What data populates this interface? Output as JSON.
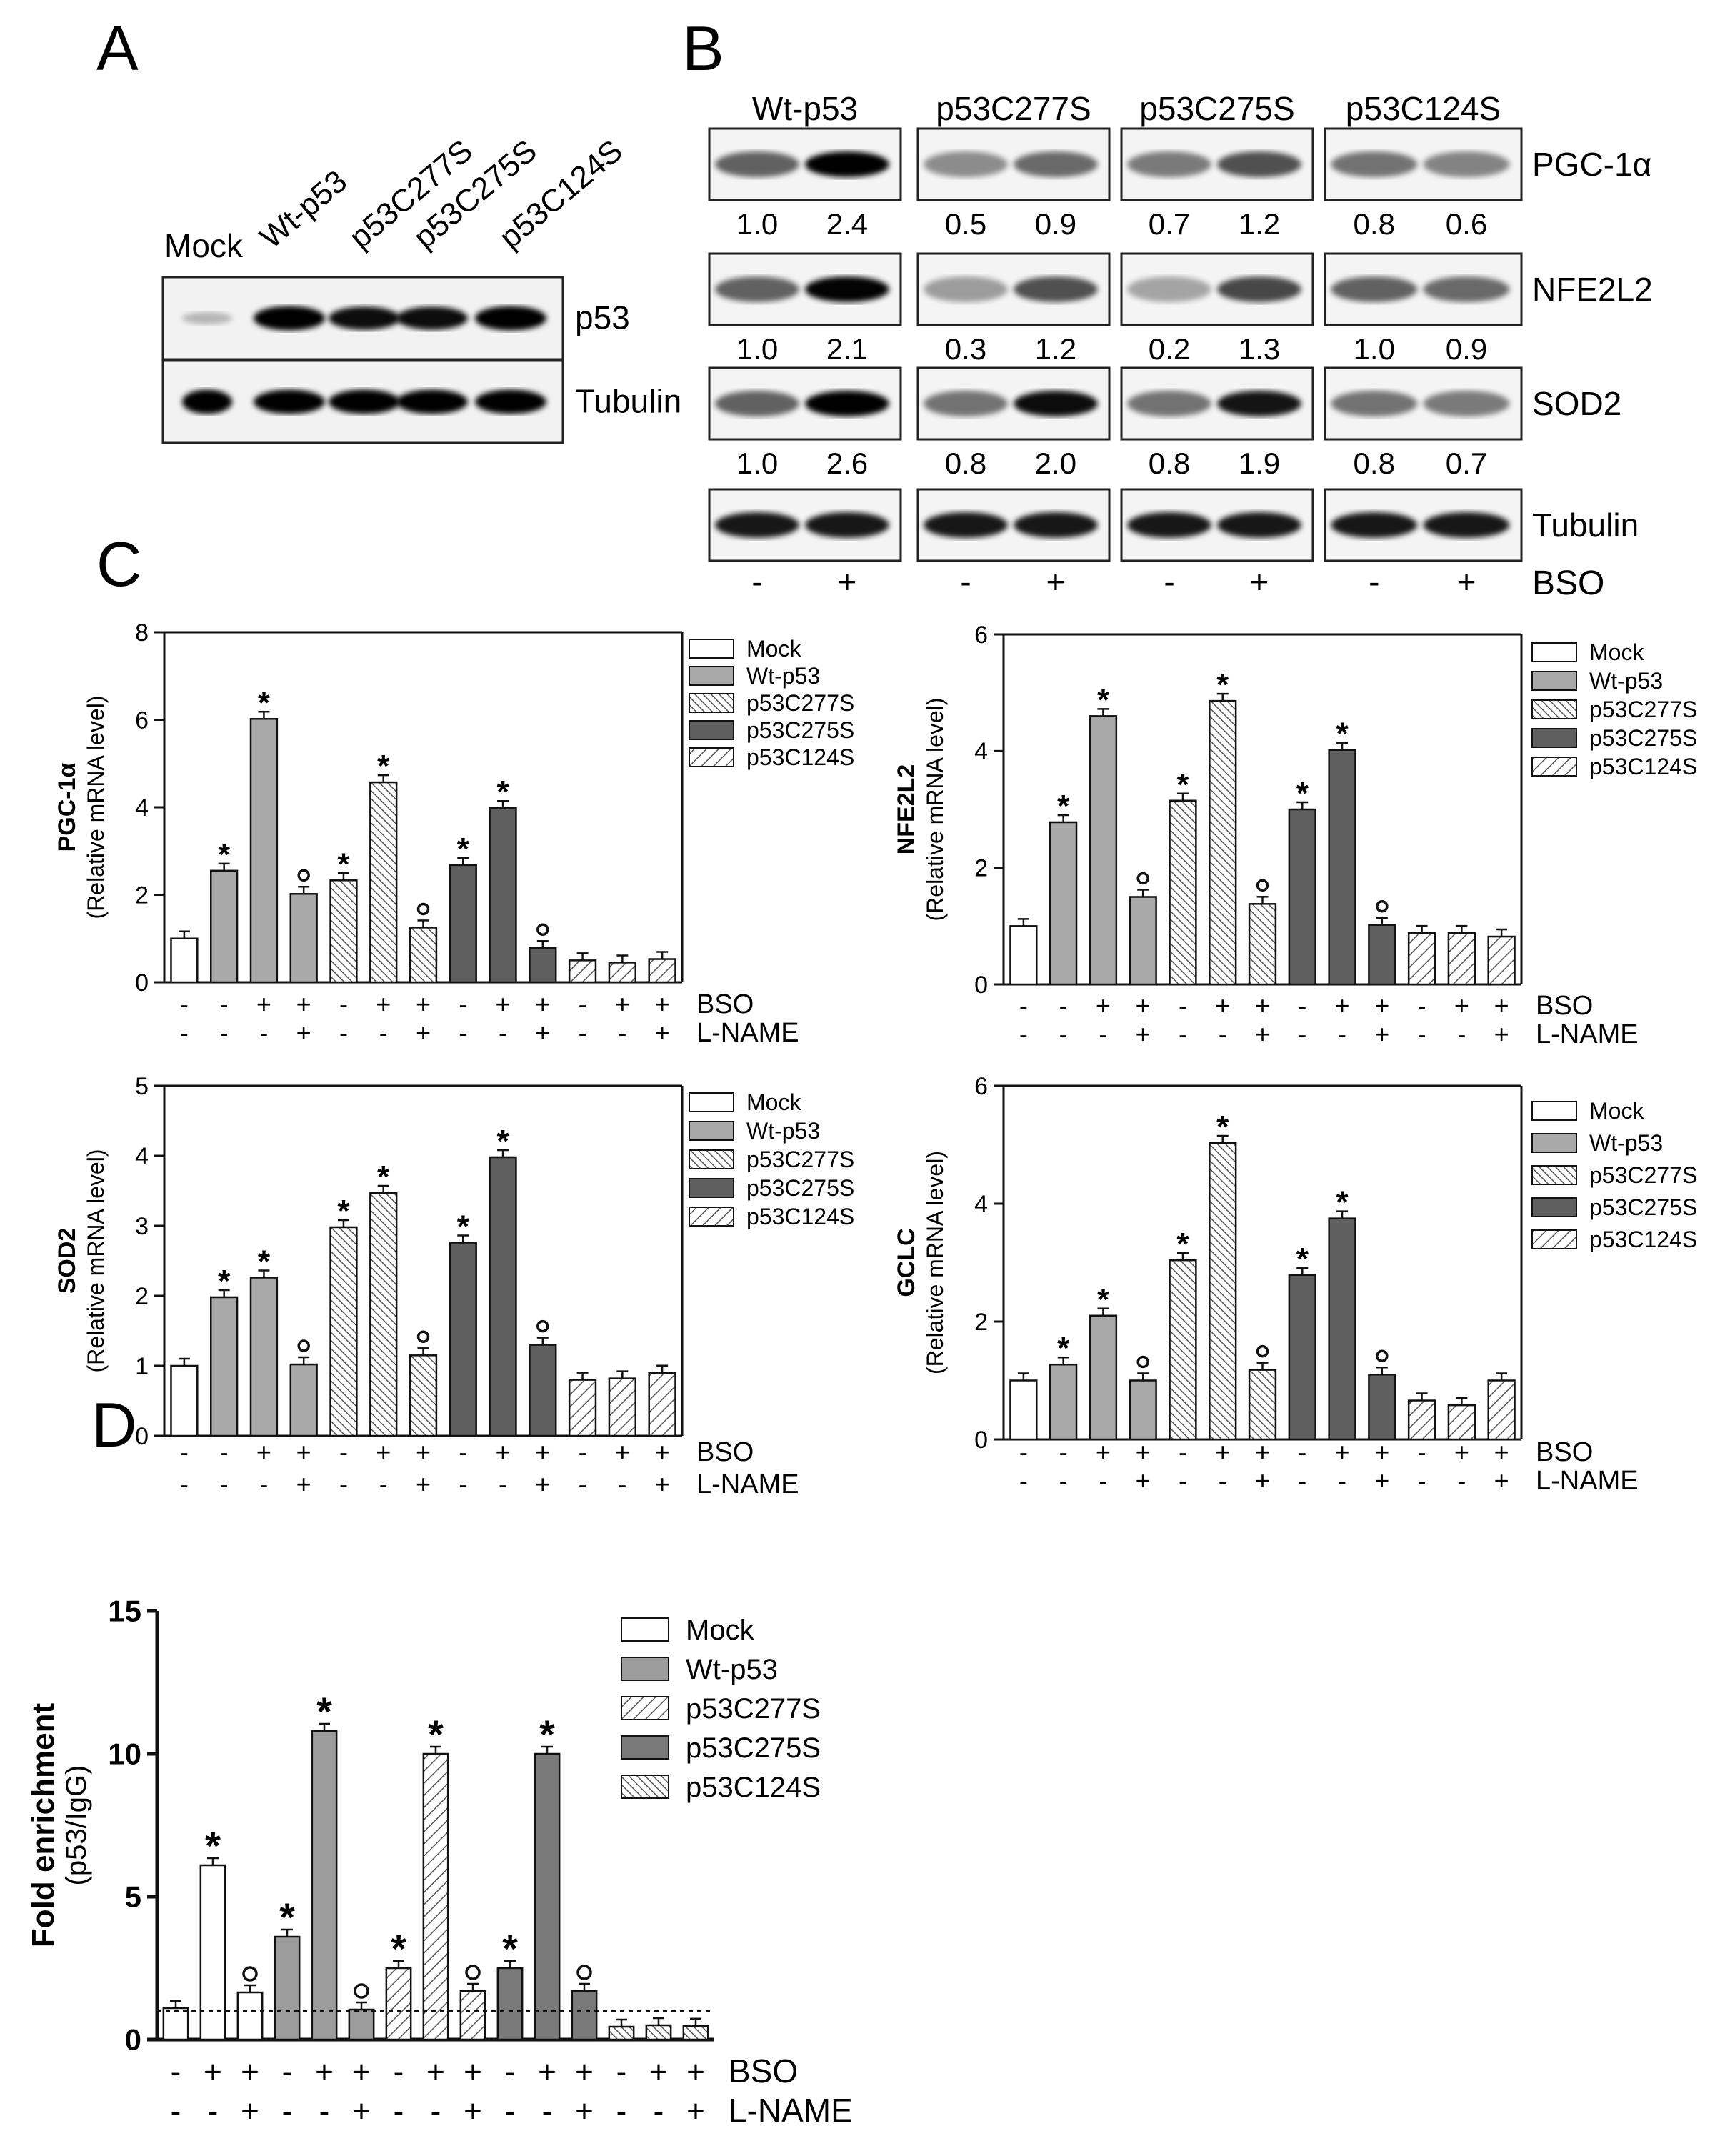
{
  "panel_letters": {
    "A": "A",
    "B": "B",
    "C": "C",
    "D": "D"
  },
  "panelA": {
    "lanes": [
      "Mock",
      "Wt-p53",
      "p53C277S",
      "p53C275S",
      "p53C124S"
    ],
    "blots": [
      "p53",
      "Tubulin"
    ],
    "p53_band_intensity": [
      0.25,
      1.0,
      0.95,
      0.95,
      1.0
    ],
    "tubulin_band_intensity": [
      1.0,
      1.0,
      1.0,
      1.0,
      1.0
    ]
  },
  "panelB": {
    "groups": [
      "Wt-p53",
      "p53C277S",
      "p53C275S",
      "p53C124S"
    ],
    "rows": [
      {
        "label": "PGC-1α",
        "values": [
          [
            "1.0",
            "2.4"
          ],
          [
            "0.5",
            "0.9"
          ],
          [
            "0.7",
            "1.2"
          ],
          [
            "0.8",
            "0.6"
          ]
        ]
      },
      {
        "label": "NFE2L2",
        "values": [
          [
            "1.0",
            "2.1"
          ],
          [
            "0.3",
            "1.2"
          ],
          [
            "0.2",
            "1.3"
          ],
          [
            "1.0",
            "0.9"
          ]
        ]
      },
      {
        "label": "SOD2",
        "values": [
          [
            "1.0",
            "2.6"
          ],
          [
            "0.8",
            "2.0"
          ],
          [
            "0.8",
            "1.9"
          ],
          [
            "0.8",
            "0.7"
          ]
        ]
      },
      {
        "label": "Tubulin",
        "values": []
      }
    ],
    "bso_label": "BSO",
    "bso_signs": [
      "-",
      "+"
    ]
  },
  "colors": {
    "Mock": "#ffffff",
    "Wt-p53": "#a9a9a9",
    "p53C277S": "hatch-fine",
    "p53C275S": "#5f5f5f",
    "p53C124S": "hatch-wide",
    "panelD_Wt-p53": "#9c9c9c",
    "panelD_p53C275S": "#7a7a7a"
  },
  "treatment_labels": {
    "bso": "BSO",
    "lname": "L-NAME"
  },
  "chart_data": [
    {
      "id": "C-PGC1a",
      "type": "bar",
      "ylabel": "PGC-1α",
      "ylabel2": "(Relative mRNA level)",
      "ylim": [
        0,
        8
      ],
      "yticks": [
        "0",
        "2",
        "4",
        "6",
        "8"
      ],
      "legend_placement": "top-right",
      "legend": [
        "Mock",
        "Wt-p53",
        "p53C277S",
        "p53C275S",
        "p53C124S"
      ],
      "values": [
        1.0,
        2.55,
        6.02,
        2.02,
        2.33,
        4.57,
        1.25,
        2.68,
        3.98,
        0.78,
        0.5,
        0.45,
        0.53
      ],
      "series": [
        "Mock",
        "Wt-p53",
        "Wt-p53",
        "Wt-p53",
        "p53C277S",
        "p53C277S",
        "p53C277S",
        "p53C275S",
        "p53C275S",
        "p53C275S",
        "p53C124S",
        "p53C124S",
        "p53C124S"
      ],
      "annotations": [
        "",
        "*",
        "*",
        "o",
        "*",
        "*",
        "o",
        "*",
        "*",
        "o",
        "",
        "",
        ""
      ],
      "bso": [
        "-",
        "-",
        "+",
        "+",
        "-",
        "+",
        "+",
        "-",
        "+",
        "+",
        "-",
        "+",
        "+"
      ],
      "lname": [
        "-",
        "-",
        "-",
        "+",
        "-",
        "-",
        "+",
        "-",
        "-",
        "+",
        "-",
        "-",
        "+"
      ]
    },
    {
      "id": "C-NFE2L2",
      "type": "bar",
      "ylabel": "NFE2L2",
      "ylabel2": "(Relative mRNA level)",
      "ylim": [
        0,
        6
      ],
      "yticks": [
        "0",
        "2",
        "4",
        "6"
      ],
      "legend_placement": "top-right",
      "legend": [
        "Mock",
        "Wt-p53",
        "p53C277S",
        "p53C275S",
        "p53C124S"
      ],
      "values": [
        1.0,
        2.78,
        4.6,
        1.5,
        3.15,
        4.86,
        1.38,
        3.0,
        4.02,
        1.02,
        0.88,
        0.88,
        0.82
      ],
      "series": [
        "Mock",
        "Wt-p53",
        "Wt-p53",
        "Wt-p53",
        "p53C277S",
        "p53C277S",
        "p53C277S",
        "p53C275S",
        "p53C275S",
        "p53C275S",
        "p53C124S",
        "p53C124S",
        "p53C124S"
      ],
      "annotations": [
        "",
        "*",
        "*",
        "o",
        "*",
        "*",
        "o",
        "*",
        "*",
        "o",
        "",
        "",
        ""
      ],
      "bso": [
        "-",
        "-",
        "+",
        "+",
        "-",
        "+",
        "+",
        "-",
        "+",
        "+",
        "-",
        "+",
        "+"
      ],
      "lname": [
        "-",
        "-",
        "-",
        "+",
        "-",
        "-",
        "+",
        "-",
        "-",
        "+",
        "-",
        "-",
        "+"
      ]
    },
    {
      "id": "C-SOD2",
      "type": "bar",
      "ylabel": "SOD2",
      "ylabel2": "(Relative mRNA level)",
      "ylim": [
        0,
        5
      ],
      "yticks": [
        "0",
        "1",
        "2",
        "3",
        "4",
        "5"
      ],
      "legend_placement": "top-right",
      "legend": [
        "Mock",
        "Wt-p53",
        "p53C277S",
        "p53C275S",
        "p53C124S"
      ],
      "values": [
        1.0,
        1.98,
        2.26,
        1.02,
        2.98,
        3.47,
        1.15,
        2.76,
        3.98,
        1.3,
        0.8,
        0.82,
        0.9
      ],
      "series": [
        "Mock",
        "Wt-p53",
        "Wt-p53",
        "Wt-p53",
        "p53C277S",
        "p53C277S",
        "p53C277S",
        "p53C275S",
        "p53C275S",
        "p53C275S",
        "p53C124S",
        "p53C124S",
        "p53C124S"
      ],
      "annotations": [
        "",
        "*",
        "*",
        "o",
        "*",
        "*",
        "o",
        "*",
        "*",
        "o",
        "",
        "",
        ""
      ],
      "bso": [
        "-",
        "-",
        "+",
        "+",
        "-",
        "+",
        "+",
        "-",
        "+",
        "+",
        "-",
        "+",
        "+"
      ],
      "lname": [
        "-",
        "-",
        "-",
        "+",
        "-",
        "-",
        "+",
        "-",
        "-",
        "+",
        "-",
        "-",
        "+"
      ]
    },
    {
      "id": "C-GCLC",
      "type": "bar",
      "ylabel": "GCLC",
      "ylabel2": "(Relative mRNA level)",
      "ylim": [
        0,
        6
      ],
      "yticks": [
        "0",
        "2",
        "4",
        "6"
      ],
      "legend_placement": "top-right",
      "legend": [
        "Mock",
        "Wt-p53",
        "p53C277S",
        "p53C275S",
        "p53C124S"
      ],
      "values": [
        1.0,
        1.27,
        2.1,
        1.0,
        3.04,
        5.03,
        1.18,
        2.79,
        3.75,
        1.1,
        0.66,
        0.58,
        1.0
      ],
      "series": [
        "Mock",
        "Wt-p53",
        "Wt-p53",
        "Wt-p53",
        "p53C277S",
        "p53C277S",
        "p53C277S",
        "p53C275S",
        "p53C275S",
        "p53C275S",
        "p53C124S",
        "p53C124S",
        "p53C124S"
      ],
      "annotations": [
        "",
        "*",
        "*",
        "o",
        "*",
        "*",
        "o",
        "*",
        "*",
        "o",
        "",
        "",
        ""
      ],
      "bso": [
        "-",
        "-",
        "+",
        "+",
        "-",
        "+",
        "+",
        "-",
        "+",
        "+",
        "-",
        "+",
        "+"
      ],
      "lname": [
        "-",
        "-",
        "-",
        "+",
        "-",
        "-",
        "+",
        "-",
        "-",
        "+",
        "-",
        "-",
        "+"
      ]
    },
    {
      "id": "D-ChIP",
      "type": "bar",
      "ylabel": "Fold enrichment",
      "ylabel2": "(p53/IgG)",
      "ylim": [
        0,
        15
      ],
      "yticks": [
        "0",
        "5",
        "10",
        "15"
      ],
      "legend_placement": "top-right",
      "legend": [
        "Mock",
        "Wt-p53",
        "p53C277S",
        "p53C275S",
        "p53C124S"
      ],
      "values": [
        1.1,
        6.1,
        1.65,
        3.6,
        10.8,
        1.05,
        2.5,
        10.0,
        1.7,
        2.5,
        10.0,
        1.7,
        0.45,
        0.5,
        0.48
      ],
      "series": [
        "Mock",
        "Mock",
        "Mock",
        "Wt-p53",
        "Wt-p53",
        "Wt-p53",
        "p53C277S",
        "p53C277S",
        "p53C277S",
        "p53C275S",
        "p53C275S",
        "p53C275S",
        "p53C124S",
        "p53C124S",
        "p53C124S"
      ],
      "annotations": [
        "",
        "*",
        "o",
        "*",
        "*",
        "o",
        "*",
        "*",
        "o",
        "*",
        "*",
        "o",
        "",
        "",
        ""
      ],
      "bso": [
        "-",
        "+",
        "+",
        "-",
        "+",
        "+",
        "-",
        "+",
        "+",
        "-",
        "+",
        "+",
        "-",
        "+",
        "+"
      ],
      "lname": [
        "-",
        "-",
        "+",
        "-",
        "-",
        "+",
        "-",
        "-",
        "+",
        "-",
        "-",
        "+",
        "-",
        "-",
        "+"
      ],
      "reference_line": 1.0
    }
  ]
}
